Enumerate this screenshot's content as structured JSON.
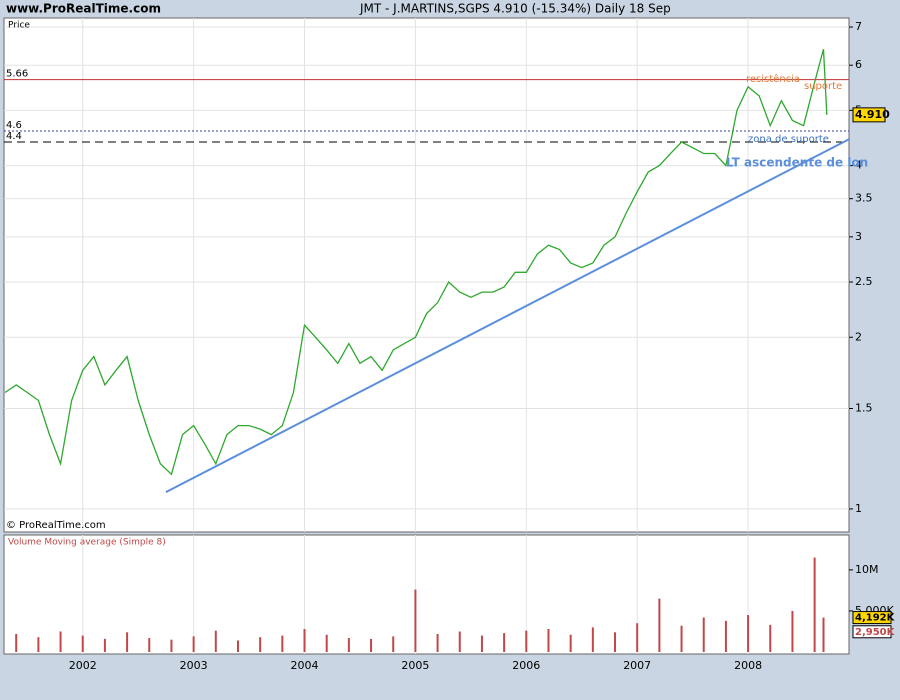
{
  "header": {
    "site": "www.ProRealTime.com",
    "title": "JMT - J.MARTINS,SGPS    4.910 (-15.34%)    Daily  18 Sep"
  },
  "chart_data": [
    {
      "type": "line",
      "panel": "price",
      "y_label": "Price",
      "copyright": "© ProRealTime.com",
      "log_scale": true,
      "grid": true,
      "color": "#2ea82e",
      "x": [
        2001.3,
        2001.4,
        2001.5,
        2001.6,
        2001.7,
        2001.8,
        2001.9,
        2002.0,
        2002.1,
        2002.2,
        2002.3,
        2002.4,
        2002.5,
        2002.6,
        2002.7,
        2002.8,
        2002.9,
        2003.0,
        2003.1,
        2003.2,
        2003.3,
        2003.4,
        2003.5,
        2003.6,
        2003.7,
        2003.8,
        2003.9,
        2004.0,
        2004.1,
        2004.2,
        2004.3,
        2004.4,
        2004.5,
        2004.6,
        2004.7,
        2004.8,
        2004.9,
        2005.0,
        2005.1,
        2005.2,
        2005.3,
        2005.4,
        2005.5,
        2005.6,
        2005.7,
        2005.8,
        2005.9,
        2006.0,
        2006.1,
        2006.2,
        2006.3,
        2006.4,
        2006.5,
        2006.6,
        2006.7,
        2006.8,
        2006.9,
        2007.0,
        2007.1,
        2007.2,
        2007.3,
        2007.4,
        2007.5,
        2007.6,
        2007.7,
        2007.8,
        2007.9,
        2008.0,
        2008.1,
        2008.2,
        2008.3,
        2008.4,
        2008.5,
        2008.6,
        2008.68,
        2008.71
      ],
      "values": [
        1.6,
        1.65,
        1.6,
        1.55,
        1.35,
        1.2,
        1.55,
        1.75,
        1.85,
        1.65,
        1.75,
        1.85,
        1.55,
        1.35,
        1.2,
        1.15,
        1.35,
        1.4,
        1.3,
        1.2,
        1.35,
        1.4,
        1.4,
        1.38,
        1.35,
        1.4,
        1.6,
        2.1,
        2.0,
        1.9,
        1.8,
        1.95,
        1.8,
        1.85,
        1.75,
        1.9,
        1.95,
        2.0,
        2.2,
        2.3,
        2.5,
        2.4,
        2.35,
        2.4,
        2.4,
        2.45,
        2.6,
        2.6,
        2.8,
        2.9,
        2.85,
        2.7,
        2.65,
        2.7,
        2.9,
        3.0,
        3.3,
        3.6,
        3.9,
        4.0,
        4.2,
        4.4,
        4.3,
        4.2,
        4.2,
        4.0,
        5.0,
        5.5,
        5.3,
        4.7,
        5.2,
        4.8,
        4.7,
        5.6,
        6.4,
        4.91
      ],
      "xlim": [
        2001.29,
        2008.91
      ],
      "xticks": [
        2002,
        2003,
        2004,
        2005,
        2006,
        2007,
        2008
      ],
      "ylim": [
        0.911,
        7.26
      ],
      "yticks": [
        1,
        1.5,
        2,
        2.5,
        3,
        3.5,
        4,
        5,
        6,
        7
      ],
      "last_price": {
        "value": 4.91,
        "label": "4.910"
      },
      "hlines": [
        {
          "value": 5.66,
          "color": "#c03030",
          "dash": "none"
        },
        {
          "value": 4.6,
          "color": "#3040a0",
          "dash": "2,2"
        },
        {
          "value": 4.4,
          "color": "#000000",
          "dash": "8,5"
        }
      ],
      "trendline": {
        "x": [
          2002.75,
          2008.91
        ],
        "y": [
          1.07,
          4.45
        ],
        "color": "#5b8fdc"
      },
      "annotations": [
        "resistência",
        "suporte",
        "zona de suporte",
        "LT ascendente de lon"
      ]
    },
    {
      "type": "bar",
      "panel": "volume",
      "title": "Volume Moving average (Simple 8)",
      "color": "#c04848",
      "x": [
        2001.4,
        2001.6,
        2001.8,
        2002.0,
        2002.2,
        2002.4,
        2002.6,
        2002.8,
        2003.0,
        2003.2,
        2003.4,
        2003.6,
        2003.8,
        2004.0,
        2004.2,
        2004.4,
        2004.6,
        2004.8,
        2005.0,
        2005.2,
        2005.4,
        2005.6,
        2005.8,
        2006.0,
        2006.2,
        2006.4,
        2006.6,
        2006.8,
        2007.0,
        2007.2,
        2007.4,
        2007.6,
        2007.8,
        2008.0,
        2008.2,
        2008.4,
        2008.6,
        2008.68
      ],
      "values": [
        2200000,
        1800000,
        2500000,
        2000000,
        1600000,
        2400000,
        1700000,
        1500000,
        1900000,
        2600000,
        1400000,
        1800000,
        2000000,
        2800000,
        2100000,
        1700000,
        1600000,
        1900000,
        7600000,
        2200000,
        2500000,
        2000000,
        2300000,
        2600000,
        2800000,
        2100000,
        3000000,
        2400000,
        3500000,
        6500000,
        3200000,
        4200000,
        3800000,
        4500000,
        3300000,
        5000000,
        11500000,
        4192000
      ],
      "xlim": [
        2001.29,
        2008.91
      ],
      "ylim": [
        0,
        14250000
      ],
      "yticks": [
        {
          "value": 10000000,
          "label": "10M"
        },
        {
          "value": 5000000,
          "label": "5,000K"
        }
      ],
      "last_volume": {
        "value": 4192000,
        "label": "4,192K"
      },
      "last_average": {
        "value": 2950000,
        "label": "2,950K"
      }
    }
  ]
}
